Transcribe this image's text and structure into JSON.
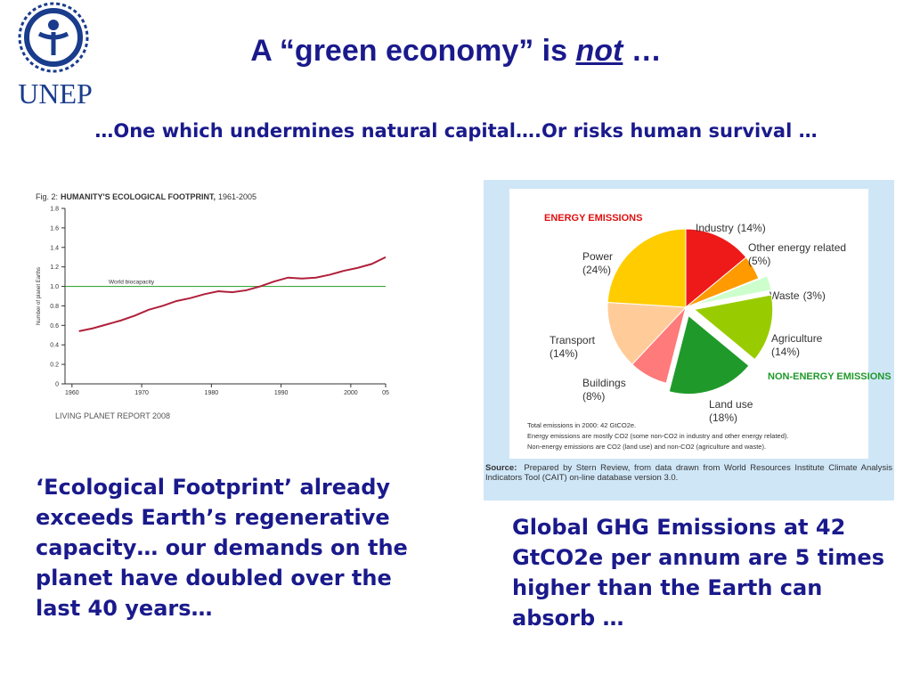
{
  "header": {
    "logo": "UNEP",
    "title_start": "A “green economy” is ",
    "title_emphasis": "not",
    "title_end": " …",
    "subtitle": "…One which undermines natural capital….Or risks human survival …"
  },
  "captions": {
    "left": "‘Ecological Footprint’ already exceeds Earth’s regenerative capacity… our demands on the planet have doubled over the last 40 years…",
    "right": "Global GHG Emissions at 42 GtCO2e per annum are 5 times higher than the Earth can absorb …"
  },
  "chart_data": [
    {
      "type": "line",
      "figure_label": "Fig. 2:",
      "title": "HUMANITY'S ECOLOGICAL FOOTPRINT,",
      "subtitle": "1961-2005",
      "y_label": "Number of planet Earths",
      "source": "LIVING PLANET REPORT 2008",
      "x": [
        1961,
        1963,
        1965,
        1967,
        1969,
        1971,
        1973,
        1975,
        1977,
        1979,
        1981,
        1983,
        1985,
        1987,
        1989,
        1991,
        1993,
        1995,
        1997,
        1999,
        2001,
        2003,
        2005
      ],
      "values": [
        0.54,
        0.57,
        0.61,
        0.65,
        0.7,
        0.76,
        0.8,
        0.85,
        0.88,
        0.92,
        0.95,
        0.94,
        0.96,
        1.0,
        1.05,
        1.09,
        1.08,
        1.09,
        1.12,
        1.16,
        1.19,
        1.23,
        1.3
      ],
      "color": "#b0203a",
      "xlim": [
        1959,
        2005
      ],
      "xticks": [
        1960,
        1970,
        1980,
        1990,
        2000,
        {
          "value": 2005,
          "label": "05"
        }
      ],
      "ylim": [
        0,
        1.8
      ],
      "yticks": [
        0,
        0.2,
        0.4,
        0.6,
        0.8,
        {
          "value": 1.0,
          "label": "1.0"
        },
        1.2,
        1.4,
        1.6,
        1.8
      ],
      "reference_line": {
        "value": 1.0,
        "label": "World biocapacity",
        "color": "#3aa83a"
      }
    },
    {
      "type": "pie",
      "categories": [
        "Industry",
        "Other energy related",
        "Waste",
        "Agriculture",
        "Land use",
        "Buildings",
        "Transport",
        "Power"
      ],
      "values": [
        14,
        5,
        3,
        14,
        18,
        8,
        14,
        24
      ],
      "value_labels": [
        "(14%)",
        "(5%)",
        "(3%)",
        "(14%)",
        "(18%)",
        "(8%)",
        "(14%)",
        "(24%)"
      ],
      "colors": [
        "#ee1a1a",
        "#ff9a00",
        "#ccffcc",
        "#99cc00",
        "#1f9a2a",
        "#ff7a7a",
        "#ffcc99",
        "#ffcc00"
      ],
      "group_labels": [
        "ENERGY EMISSIONS",
        "NON-ENERGY EMISSIONS"
      ],
      "notes": [
        "Total emissions in 2000: 42 GtCO2e.",
        "Energy emissions are mostly CO2 (some non-CO2 in industry and other energy related).",
        "Non-energy emissions are CO2 (land use) and non-CO2 (agriculture and waste)."
      ],
      "source_label": "Source:",
      "source": "Prepared by Stern Review, from data drawn from World Resources Institute Climate Analysis Indicators Tool (CAIT) on-line database version 3.0."
    }
  ]
}
